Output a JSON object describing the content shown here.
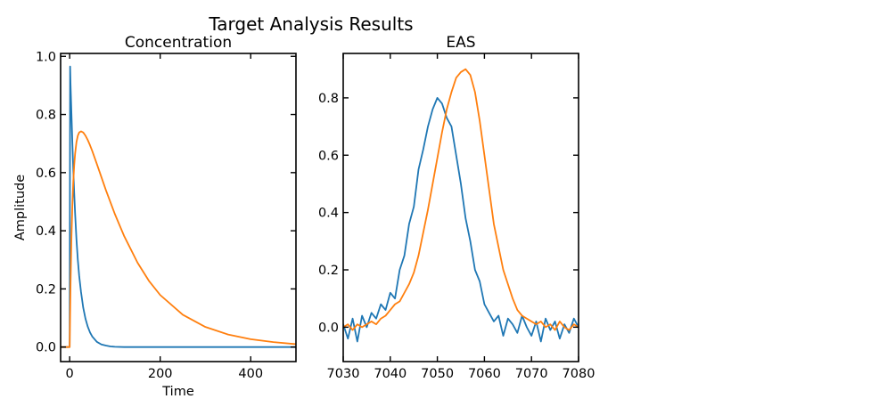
{
  "figure": {
    "title": "Target Analysis Results"
  },
  "colors": {
    "series1": "#1f77b4",
    "series2": "#ff7f0e",
    "axes": "#000000",
    "background": "#ffffff"
  },
  "chart_data": [
    {
      "type": "line",
      "title": "Concentration",
      "xlabel": "Time",
      "ylabel": "Amplitude",
      "xlim": [
        -20,
        500
      ],
      "ylim": [
        -0.05,
        1.01
      ],
      "xticks": [
        0,
        200,
        400
      ],
      "yticks": [
        0.0,
        0.2,
        0.4,
        0.6,
        0.8,
        1.0
      ],
      "xtick_labels": [
        "0",
        "200",
        "400"
      ],
      "ytick_labels": [
        "0.0",
        "0.2",
        "0.4",
        "0.6",
        "0.8",
        "1.0"
      ],
      "grid": false,
      "legend": "none",
      "series": [
        {
          "color": "#1f77b4",
          "x": [
            -20,
            0,
            1,
            2,
            4,
            6,
            8,
            10,
            12,
            15,
            18,
            21,
            25,
            30,
            35,
            40,
            45,
            50,
            60,
            70,
            80,
            90,
            100,
            120,
            150,
            200,
            300,
            400,
            500
          ],
          "y": [
            0,
            0,
            0.965,
            0.9,
            0.8,
            0.7,
            0.61,
            0.53,
            0.46,
            0.37,
            0.3,
            0.245,
            0.19,
            0.135,
            0.097,
            0.07,
            0.05,
            0.036,
            0.018,
            0.009,
            0.005,
            0.002,
            0.001,
            0.0,
            0.0,
            0.0,
            0.0,
            0.0,
            0.0
          ]
        },
        {
          "color": "#ff7f0e",
          "x": [
            -20,
            0,
            2,
            4,
            6,
            8,
            10,
            12,
            15,
            18,
            21,
            25,
            30,
            35,
            40,
            45,
            50,
            60,
            70,
            80,
            100,
            120,
            150,
            175,
            200,
            250,
            300,
            350,
            400,
            450,
            500
          ],
          "y": [
            0,
            0,
            0.22,
            0.38,
            0.49,
            0.57,
            0.625,
            0.665,
            0.705,
            0.727,
            0.738,
            0.742,
            0.738,
            0.727,
            0.712,
            0.694,
            0.674,
            0.63,
            0.585,
            0.54,
            0.457,
            0.383,
            0.29,
            0.228,
            0.179,
            0.111,
            0.069,
            0.043,
            0.027,
            0.017,
            0.01
          ]
        }
      ]
    },
    {
      "type": "line",
      "title": "EAS",
      "xlabel": "",
      "ylabel": "",
      "xlim": [
        7030,
        7080
      ],
      "ylim": [
        -0.12,
        0.955
      ],
      "xticks": [
        7030,
        7040,
        7050,
        7060,
        7070,
        7080
      ],
      "yticks": [
        0.0,
        0.2,
        0.4,
        0.6,
        0.8
      ],
      "xtick_labels": [
        "7030",
        "7040",
        "7050",
        "7060",
        "7070",
        "7080"
      ],
      "ytick_labels": [
        "0.0",
        "0.2",
        "0.4",
        "0.6",
        "0.8"
      ],
      "grid": false,
      "legend": "none",
      "series": [
        {
          "color": "#1f77b4",
          "x": [
            7030,
            7031,
            7032,
            7033,
            7034,
            7035,
            7036,
            7037,
            7038,
            7039,
            7040,
            7041,
            7042,
            7043,
            7044,
            7045,
            7046,
            7047,
            7048,
            7049,
            7050,
            7051,
            7052,
            7053,
            7054,
            7055,
            7056,
            7057,
            7058,
            7059,
            7060,
            7061,
            7062,
            7063,
            7064,
            7065,
            7066,
            7067,
            7068,
            7069,
            7070,
            7071,
            7072,
            7073,
            7074,
            7075,
            7076,
            7077,
            7078,
            7079,
            7080
          ],
          "y": [
            0.01,
            -0.04,
            0.03,
            -0.05,
            0.04,
            0.0,
            0.05,
            0.03,
            0.08,
            0.06,
            0.12,
            0.1,
            0.2,
            0.25,
            0.36,
            0.42,
            0.55,
            0.62,
            0.7,
            0.76,
            0.8,
            0.78,
            0.73,
            0.7,
            0.6,
            0.5,
            0.38,
            0.3,
            0.2,
            0.16,
            0.08,
            0.05,
            0.02,
            0.04,
            -0.03,
            0.03,
            0.01,
            -0.02,
            0.04,
            0.0,
            -0.03,
            0.02,
            -0.05,
            0.03,
            -0.01,
            0.02,
            -0.04,
            0.01,
            -0.02,
            0.03,
            0.0
          ]
        },
        {
          "color": "#ff7f0e",
          "x": [
            7030,
            7031,
            7032,
            7033,
            7034,
            7035,
            7036,
            7037,
            7038,
            7039,
            7040,
            7041,
            7042,
            7043,
            7044,
            7045,
            7046,
            7047,
            7048,
            7049,
            7050,
            7051,
            7052,
            7053,
            7054,
            7055,
            7056,
            7057,
            7058,
            7059,
            7060,
            7061,
            7062,
            7063,
            7064,
            7065,
            7066,
            7067,
            7068,
            7069,
            7070,
            7071,
            7072,
            7073,
            7074,
            7075,
            7076,
            7077,
            7078,
            7079,
            7080
          ],
          "y": [
            0.0,
            0.01,
            -0.01,
            0.01,
            0.0,
            0.01,
            0.02,
            0.01,
            0.03,
            0.04,
            0.06,
            0.08,
            0.09,
            0.12,
            0.15,
            0.19,
            0.25,
            0.33,
            0.41,
            0.5,
            0.59,
            0.68,
            0.76,
            0.82,
            0.87,
            0.89,
            0.9,
            0.88,
            0.82,
            0.72,
            0.6,
            0.48,
            0.36,
            0.28,
            0.2,
            0.15,
            0.1,
            0.06,
            0.04,
            0.03,
            0.02,
            0.01,
            0.02,
            0.0,
            0.01,
            -0.01,
            0.02,
            0.0,
            -0.01,
            0.01,
            0.0
          ]
        }
      ]
    }
  ]
}
